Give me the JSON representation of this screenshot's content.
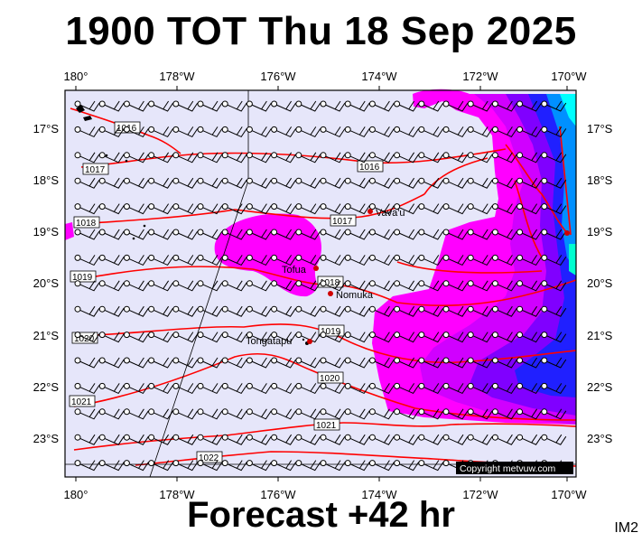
{
  "title": "1900 TOT Thu 18 Sep 2025",
  "footer": "Forecast +42 hr",
  "image_tag": "IM2",
  "copyright": "Copyright metvuw.com",
  "lon_labels": [
    "180°",
    "178°W",
    "176°W",
    "174°W",
    "172°W",
    "170°W"
  ],
  "lat_labels": [
    "17°S",
    "18°S",
    "19°S",
    "20°S",
    "21°S",
    "22°S",
    "23°S"
  ],
  "isobars": [
    "1016",
    "1016",
    "1017",
    "1017",
    "1018",
    "1018",
    "1019",
    "1019",
    "1020",
    "1020",
    "1021",
    "1021",
    "1022"
  ],
  "places": [
    "Vava'u",
    "Tofua",
    "Nomuka",
    "Tongatapu"
  ],
  "colors": {
    "background": "#e6e6fa",
    "rain_light": "#ff00ff",
    "rain_mid": "#c000ff",
    "rain_heavy": "#0000ff",
    "rain_max": "#00ffff",
    "isobar": "#ff0000"
  }
}
